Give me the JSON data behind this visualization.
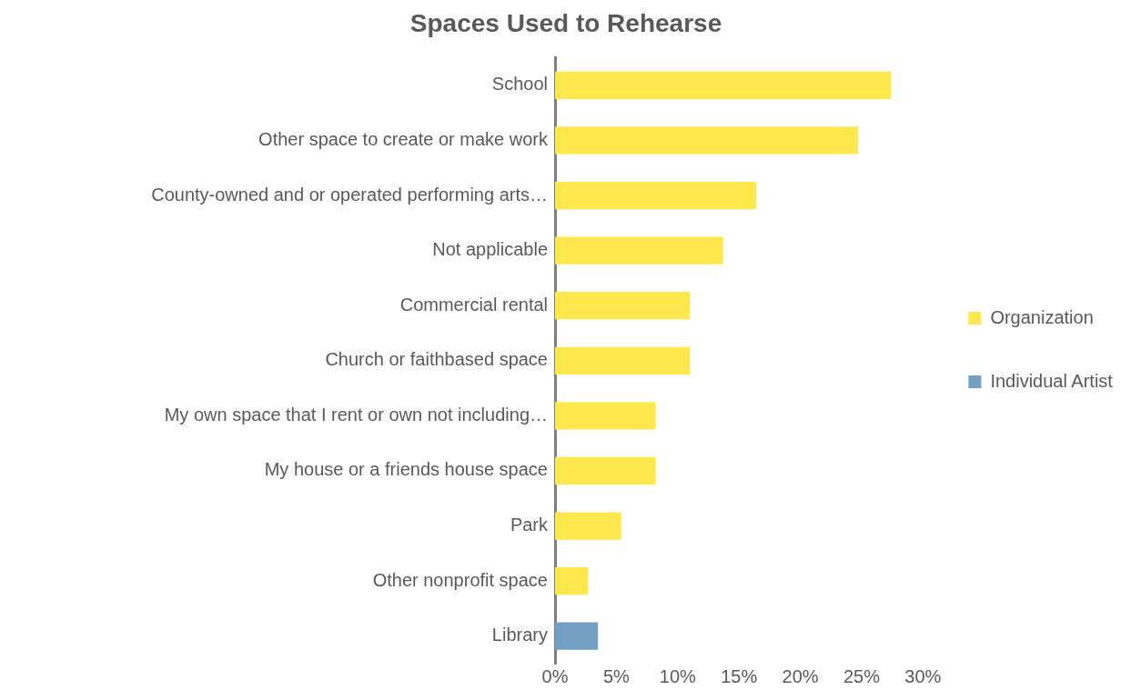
{
  "chart_data": {
    "type": "bar",
    "orientation": "horizontal",
    "title": "Spaces Used to Rehearse",
    "categories": [
      "School",
      "Other space to create or make work",
      "County-owned and or operated performing arts…",
      "Not applicable",
      "Commercial rental",
      "Church or faithbased space",
      "My own space that I rent or own not including…",
      "My house or a friends house space",
      "Park",
      "Other nonprofit space",
      "Library"
    ],
    "series": [
      {
        "name": "Organization",
        "color": "#ffe74e",
        "values": [
          27.4,
          24.7,
          16.4,
          13.7,
          11.0,
          11.0,
          8.2,
          8.2,
          5.4,
          2.7,
          null
        ]
      },
      {
        "name": "Individual Artist",
        "color": "#729fc2",
        "values": [
          null,
          null,
          null,
          null,
          null,
          null,
          null,
          null,
          null,
          null,
          3.5
        ]
      }
    ],
    "xlim": [
      0,
      30
    ],
    "xticks": [
      {
        "value": 0,
        "label": "0%"
      },
      {
        "value": 5,
        "label": "5%"
      },
      {
        "value": 10,
        "label": "10%"
      },
      {
        "value": 15,
        "label": "15%"
      },
      {
        "value": 20,
        "label": "20%"
      },
      {
        "value": 25,
        "label": "25%"
      },
      {
        "value": 30,
        "label": "30%"
      }
    ],
    "grid": false,
    "legend": "right"
  }
}
